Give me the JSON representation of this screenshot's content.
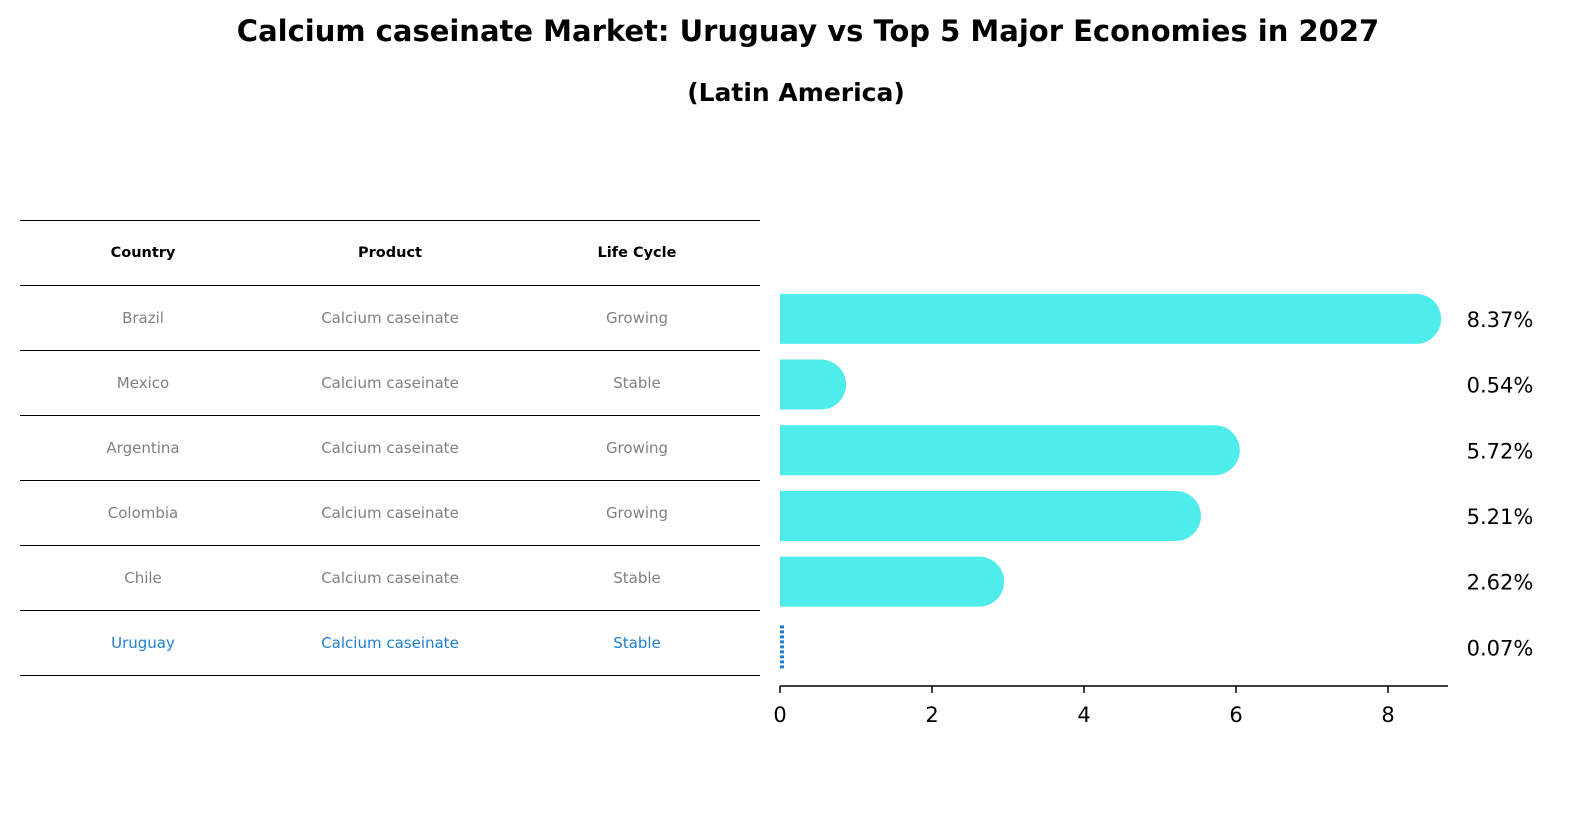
{
  "title": "Calcium caseinate Market: Uruguay vs Top 5 Major Economies in 2027",
  "subtitle": "(Latin America)",
  "table": {
    "headers": [
      "Country",
      "Product",
      "Life Cycle"
    ],
    "rows": [
      {
        "country": "Brazil",
        "product": "Calcium caseinate",
        "life_cycle": "Growing"
      },
      {
        "country": "Mexico",
        "product": "Calcium caseinate",
        "life_cycle": "Stable"
      },
      {
        "country": "Argentina",
        "product": "Calcium caseinate",
        "life_cycle": "Growing"
      },
      {
        "country": "Colombia",
        "product": "Calcium caseinate",
        "life_cycle": "Growing"
      },
      {
        "country": "Chile",
        "product": "Calcium caseinate",
        "life_cycle": "Stable"
      },
      {
        "country": "Uruguay",
        "product": "Calcium caseinate",
        "life_cycle": "Stable"
      }
    ]
  },
  "colors": {
    "bar": "#4dedeb",
    "highlight": "#1f7fd1",
    "text_muted": "#808080",
    "axis": "#000000"
  },
  "chart_data": {
    "type": "bar",
    "orientation": "horizontal",
    "categories": [
      "Brazil",
      "Mexico",
      "Argentina",
      "Colombia",
      "Chile",
      "Uruguay"
    ],
    "values": [
      8.37,
      0.54,
      5.72,
      5.21,
      2.62,
      0.07
    ],
    "value_labels": [
      "8.37%",
      "0.54%",
      "5.72%",
      "5.21%",
      "2.62%",
      "0.07%"
    ],
    "highlight_category": "Uruguay",
    "xlim": [
      0,
      8.8
    ],
    "xticks": [
      0,
      2,
      4,
      6,
      8
    ],
    "xtick_labels": [
      "0",
      "2",
      "4",
      "6",
      "8"
    ],
    "grid": false,
    "xlabel": "",
    "ylabel": ""
  }
}
